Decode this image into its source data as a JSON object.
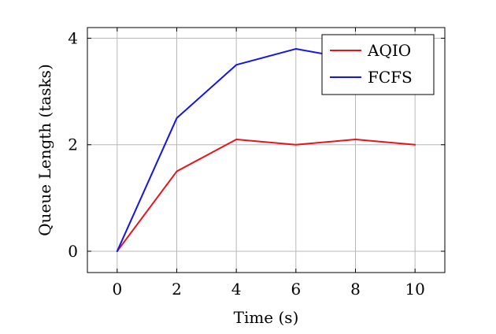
{
  "chart_data": {
    "type": "line",
    "title": "",
    "xlabel": "Time (s)",
    "ylabel": "Queue Length (tasks)",
    "xlim": [
      -1,
      11
    ],
    "ylim": [
      -0.4,
      4.2
    ],
    "x_ticks": [
      0,
      2,
      4,
      6,
      8,
      10
    ],
    "y_ticks": [
      0,
      2,
      4
    ],
    "grid": true,
    "legend_position": "top-right",
    "x": [
      0,
      2,
      4,
      6,
      8,
      10
    ],
    "series": [
      {
        "name": "AQIO",
        "color": "#e6141e",
        "values": [
          0,
          1.5,
          2.1,
          2.0,
          2.1,
          2.0
        ]
      },
      {
        "name": "FCFS",
        "color": "#1414e6",
        "values": [
          0,
          2.5,
          3.5,
          3.8,
          3.6,
          3.8
        ]
      }
    ]
  }
}
